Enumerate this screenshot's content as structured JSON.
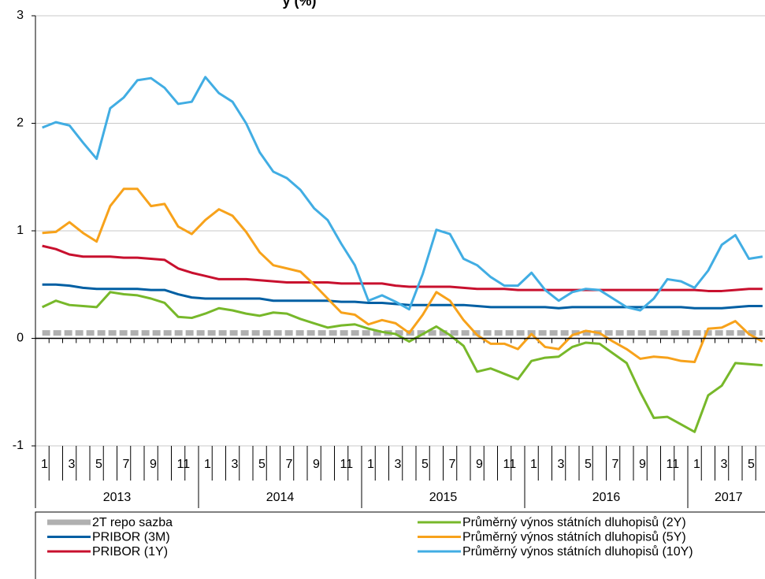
{
  "chart_data": {
    "type": "line",
    "title": "y (%)",
    "categories": [
      "1",
      null,
      "3",
      null,
      "5",
      null,
      "7",
      null,
      "9",
      null,
      "11",
      null,
      "1",
      null,
      "3",
      null,
      "5",
      null,
      "7",
      null,
      "9",
      null,
      "11",
      null,
      "1",
      null,
      "3",
      null,
      "5",
      null,
      "7",
      null,
      "9",
      null,
      "11",
      null,
      "1",
      null,
      "3",
      null,
      "5",
      null,
      "7",
      null,
      "9",
      null,
      "11",
      null,
      "1",
      null,
      "3",
      null,
      "5",
      null
    ],
    "years": [
      "2013",
      "2014",
      "2015",
      "2016",
      "2017"
    ],
    "ylim": [
      -1,
      3
    ],
    "yticks": [
      -1,
      0,
      1,
      2,
      3
    ],
    "grid": true,
    "series": [
      {
        "name": "2T repo sazba",
        "color": "#b0b0b0",
        "dashed": true,
        "values": [
          0.05,
          0.05,
          0.05,
          0.05,
          0.05,
          0.05,
          0.05,
          0.05,
          0.05,
          0.05,
          0.05,
          0.05,
          0.05,
          0.05,
          0.05,
          0.05,
          0.05,
          0.05,
          0.05,
          0.05,
          0.05,
          0.05,
          0.05,
          0.05,
          0.05,
          0.05,
          0.05,
          0.05,
          0.05,
          0.05,
          0.05,
          0.05,
          0.05,
          0.05,
          0.05,
          0.05,
          0.05,
          0.05,
          0.05,
          0.05,
          0.05,
          0.05,
          0.05,
          0.05,
          0.05,
          0.05,
          0.05,
          0.05,
          0.05,
          0.05,
          0.05,
          0.05,
          0.05,
          0.05
        ]
      },
      {
        "name": "PRIBOR (3M)",
        "color": "#005fa3",
        "values": [
          0.5,
          0.5,
          0.49,
          0.47,
          0.46,
          0.46,
          0.46,
          0.46,
          0.45,
          0.45,
          0.41,
          0.38,
          0.37,
          0.37,
          0.37,
          0.37,
          0.37,
          0.35,
          0.35,
          0.35,
          0.35,
          0.35,
          0.34,
          0.34,
          0.33,
          0.33,
          0.32,
          0.31,
          0.31,
          0.31,
          0.31,
          0.31,
          0.3,
          0.29,
          0.29,
          0.29,
          0.29,
          0.29,
          0.28,
          0.29,
          0.29,
          0.29,
          0.29,
          0.29,
          0.29,
          0.29,
          0.29,
          0.29,
          0.28,
          0.28,
          0.28,
          0.29,
          0.3,
          0.3
        ]
      },
      {
        "name": "PRIBOR (1Y)",
        "color": "#c8102e",
        "values": [
          0.86,
          0.83,
          0.78,
          0.76,
          0.76,
          0.76,
          0.75,
          0.75,
          0.74,
          0.73,
          0.65,
          0.61,
          0.58,
          0.55,
          0.55,
          0.55,
          0.54,
          0.53,
          0.52,
          0.52,
          0.52,
          0.52,
          0.51,
          0.51,
          0.51,
          0.51,
          0.49,
          0.48,
          0.48,
          0.48,
          0.48,
          0.47,
          0.46,
          0.46,
          0.46,
          0.45,
          0.45,
          0.45,
          0.45,
          0.45,
          0.45,
          0.45,
          0.45,
          0.45,
          0.45,
          0.45,
          0.45,
          0.45,
          0.45,
          0.44,
          0.44,
          0.45,
          0.46,
          0.46
        ]
      },
      {
        "name": "Průměrný výnos státních dluhopisů (2Y)",
        "color": "#77b82a",
        "values": [
          0.29,
          0.35,
          0.31,
          0.3,
          0.29,
          0.43,
          0.41,
          0.4,
          0.37,
          0.33,
          0.2,
          0.19,
          0.23,
          0.28,
          0.26,
          0.23,
          0.21,
          0.24,
          0.23,
          0.18,
          0.14,
          0.1,
          0.12,
          0.13,
          0.09,
          0.06,
          0.04,
          -0.03,
          0.04,
          0.11,
          0.03,
          -0.07,
          -0.31,
          -0.28,
          -0.33,
          -0.38,
          -0.21,
          -0.18,
          -0.17,
          -0.08,
          -0.04,
          -0.05,
          -0.14,
          -0.23,
          -0.5,
          -0.74,
          -0.73,
          -0.8,
          -0.87,
          -0.53,
          -0.44,
          -0.23,
          -0.24,
          -0.25
        ]
      },
      {
        "name": "Průměrný výnos státních dluhopisů (5Y)",
        "color": "#f7a21b",
        "values": [
          0.98,
          0.99,
          1.08,
          0.98,
          0.9,
          1.23,
          1.39,
          1.39,
          1.23,
          1.25,
          1.04,
          0.97,
          1.1,
          1.2,
          1.14,
          0.99,
          0.8,
          0.68,
          0.65,
          0.62,
          0.5,
          0.37,
          0.24,
          0.22,
          0.13,
          0.17,
          0.14,
          0.05,
          0.22,
          0.43,
          0.35,
          0.17,
          0.03,
          -0.05,
          -0.05,
          -0.1,
          0.04,
          -0.08,
          -0.1,
          0.03,
          0.07,
          0.05,
          -0.03,
          -0.1,
          -0.19,
          -0.17,
          -0.18,
          -0.21,
          -0.22,
          0.09,
          0.1,
          0.16,
          0.04,
          -0.03
        ]
      },
      {
        "name": "Průměrný výnos státních dluhopisů (10Y)",
        "color": "#41ade3",
        "values": [
          1.96,
          2.01,
          1.98,
          1.82,
          1.67,
          2.14,
          2.24,
          2.4,
          2.42,
          2.33,
          2.18,
          2.2,
          2.43,
          2.28,
          2.2,
          2.0,
          1.73,
          1.55,
          1.49,
          1.38,
          1.21,
          1.1,
          0.88,
          0.68,
          0.35,
          0.4,
          0.34,
          0.27,
          0.6,
          1.01,
          0.97,
          0.74,
          0.68,
          0.57,
          0.49,
          0.49,
          0.61,
          0.45,
          0.35,
          0.43,
          0.46,
          0.45,
          0.37,
          0.29,
          0.26,
          0.37,
          0.55,
          0.53,
          0.47,
          0.63,
          0.87,
          0.96,
          0.74,
          0.76
        ]
      }
    ]
  }
}
